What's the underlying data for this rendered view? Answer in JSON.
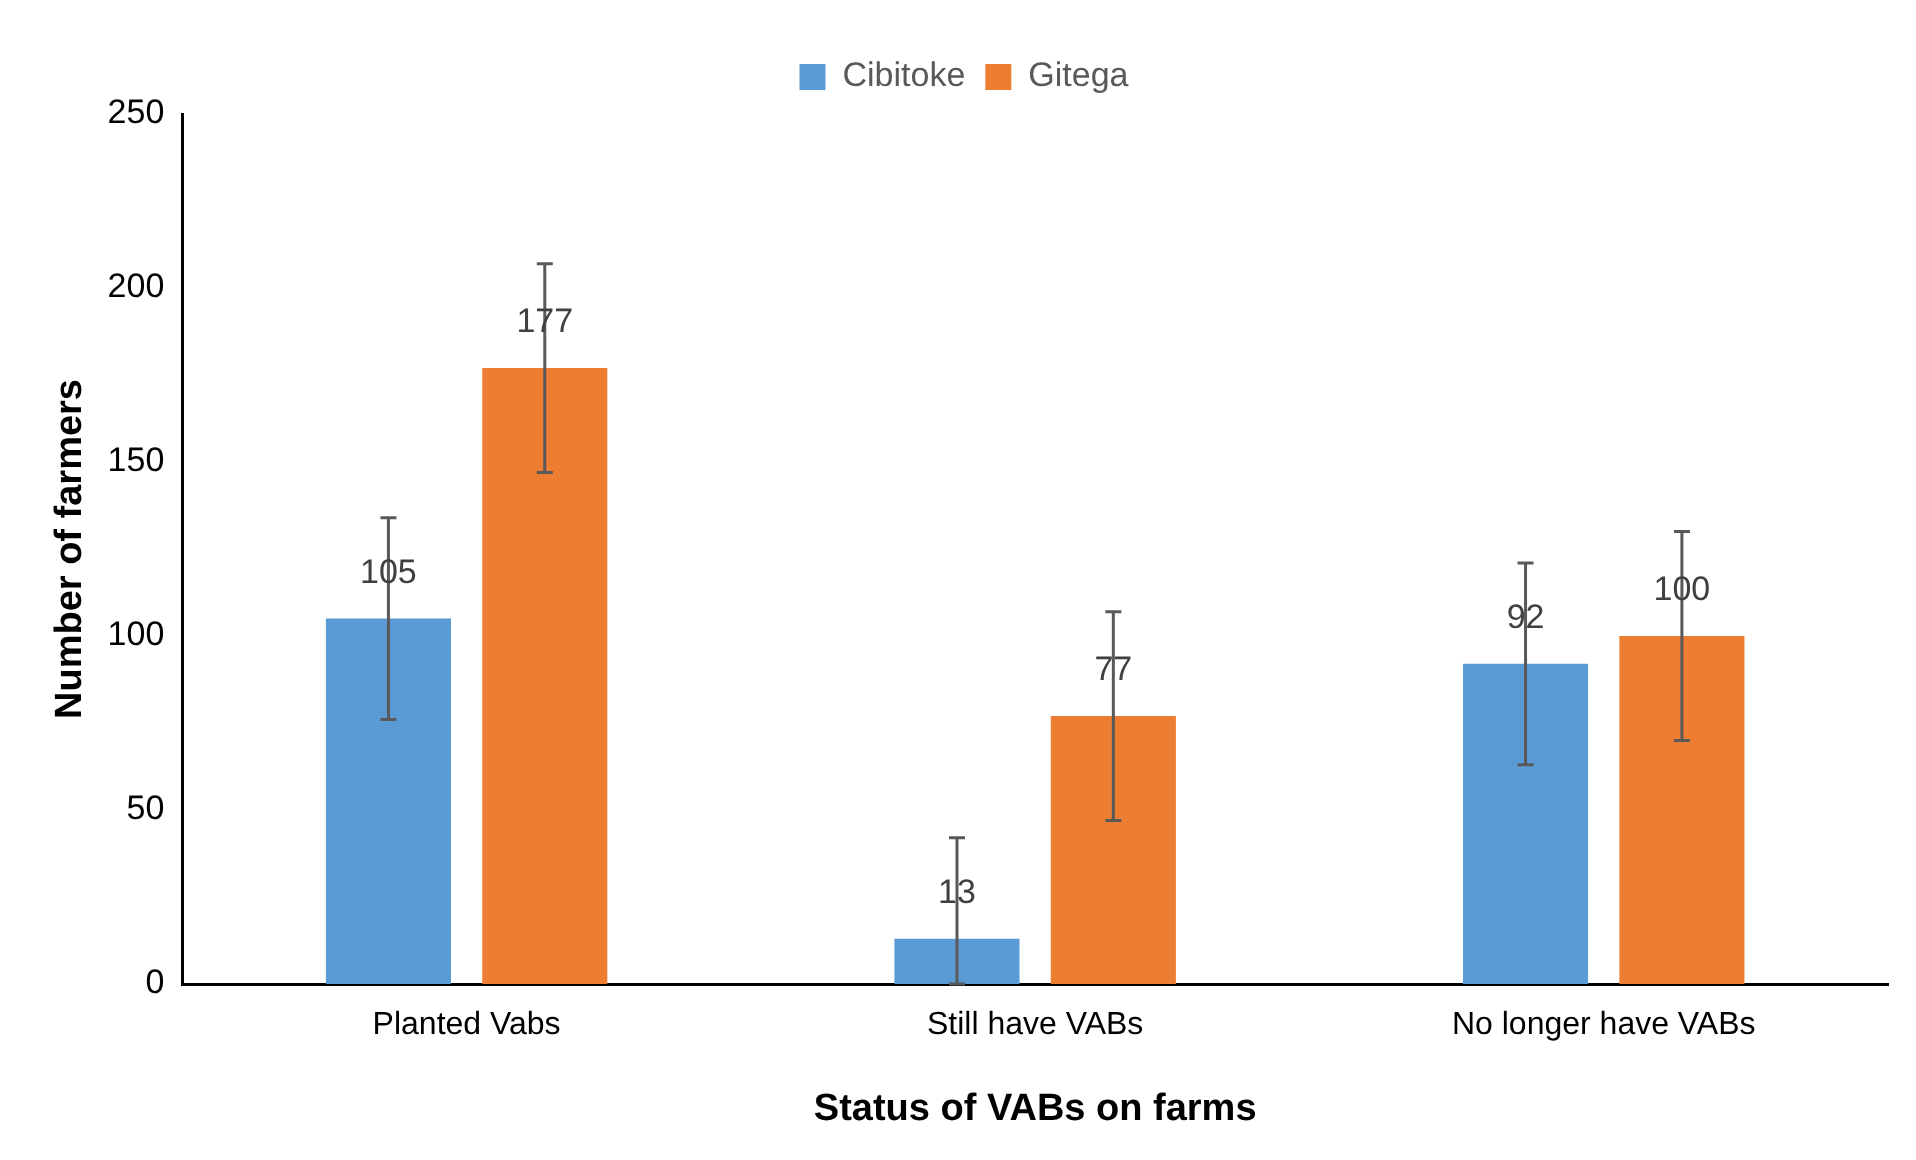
{
  "chart_data": {
    "type": "bar",
    "categories": [
      "Planted Vabs",
      "Still have VABs",
      "No longer have VABs"
    ],
    "series": [
      {
        "name": "Cibitoke",
        "color": "#5b9bd5",
        "values": [
          105,
          13,
          92
        ],
        "errors": [
          29,
          [
            0,
            42
          ],
          29
        ]
      },
      {
        "name": "Gitega",
        "color": "#ed7d31",
        "values": [
          177,
          77,
          100
        ],
        "errors": [
          30,
          30,
          30
        ]
      }
    ],
    "xlabel": "Status of VABs on farms",
    "ylabel": "Number of farmers",
    "ylim": [
      0,
      250
    ],
    "yticks": [
      0,
      50,
      100,
      150,
      200,
      250
    ],
    "grid": false,
    "legend": "top",
    "data_labels": true
  }
}
